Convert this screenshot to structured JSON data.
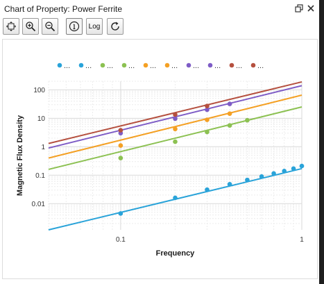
{
  "window": {
    "title": "Chart of Property: Power Ferrite",
    "restore_icon": "restore-window-icon",
    "close_icon": "close-icon"
  },
  "toolbar": {
    "buttons": [
      {
        "name": "fit-view-button",
        "icon": "fit-view-icon"
      },
      {
        "name": "zoom-in-button",
        "icon": "zoom-in-icon"
      },
      {
        "name": "zoom-out-button",
        "icon": "zoom-out-icon"
      },
      {
        "name": "info-button",
        "icon": "info-circle-icon"
      },
      {
        "name": "log-button",
        "label": "Log"
      },
      {
        "name": "refresh-button",
        "icon": "refresh-icon"
      }
    ]
  },
  "chart_data": {
    "type": "scatter",
    "xlabel": "Frequency",
    "ylabel": "Magnetic Flux Density",
    "xscale": "log",
    "yscale": "log",
    "xlim": [
      0.04,
      1.0
    ],
    "ylim": [
      0.0012,
      200
    ],
    "x_ticks": [
      {
        "value": 0.1,
        "label": "0.1"
      },
      {
        "value": 1,
        "label": "1"
      }
    ],
    "y_ticks": [
      {
        "value": 100,
        "label": "100"
      },
      {
        "value": 10,
        "label": "10"
      },
      {
        "value": 1,
        "label": "1"
      },
      {
        "value": 0.1,
        "label": "0.1"
      },
      {
        "value": 0.01,
        "label": "0.01"
      }
    ],
    "grid": true,
    "legend": {
      "position": "top",
      "entries": [
        {
          "label": "...",
          "color": "#29a3d9"
        },
        {
          "label": "...",
          "color": "#29a3d9"
        },
        {
          "label": "...",
          "color": "#8cc152"
        },
        {
          "label": "...",
          "color": "#8cc152"
        },
        {
          "label": "...",
          "color": "#f4a024"
        },
        {
          "label": "...",
          "color": "#f4a024"
        },
        {
          "label": "...",
          "color": "#7e5cc6"
        },
        {
          "label": "...",
          "color": "#7e5cc6"
        },
        {
          "label": "...",
          "color": "#b5503f"
        },
        {
          "label": "...",
          "color": "#b5503f"
        }
      ]
    },
    "series": [
      {
        "color": "#29a3d9",
        "points": [
          [
            0.1,
            0.0045
          ],
          [
            0.2,
            0.016
          ],
          [
            0.3,
            0.031
          ],
          [
            0.4,
            0.048
          ],
          [
            0.5,
            0.068
          ],
          [
            0.6,
            0.09
          ],
          [
            0.7,
            0.115
          ],
          [
            0.8,
            0.14
          ],
          [
            0.9,
            0.17
          ],
          [
            1.0,
            0.21
          ]
        ],
        "fit": [
          [
            0.04,
            0.0012
          ],
          [
            1.0,
            0.17
          ]
        ]
      },
      {
        "color": "#8cc152",
        "points": [
          [
            0.1,
            0.4
          ],
          [
            0.2,
            1.5
          ],
          [
            0.3,
            3.3
          ],
          [
            0.4,
            5.6
          ],
          [
            0.5,
            8.5
          ]
        ],
        "fit": [
          [
            0.04,
            0.16
          ],
          [
            1.0,
            25
          ]
        ]
      },
      {
        "color": "#f4a024",
        "points": [
          [
            0.1,
            1.1
          ],
          [
            0.2,
            4.2
          ],
          [
            0.3,
            8.8
          ],
          [
            0.4,
            14.5
          ]
        ],
        "fit": [
          [
            0.04,
            0.4
          ],
          [
            1.0,
            65
          ]
        ]
      },
      {
        "color": "#7e5cc6",
        "points": [
          [
            0.1,
            3.0
          ],
          [
            0.2,
            9.7
          ],
          [
            0.3,
            20
          ],
          [
            0.4,
            32
          ]
        ],
        "fit": [
          [
            0.04,
            0.9
          ],
          [
            1.0,
            140
          ]
        ]
      },
      {
        "color": "#b5503f",
        "points": [
          [
            0.1,
            3.8
          ],
          [
            0.2,
            13.5
          ],
          [
            0.3,
            27
          ]
        ],
        "fit": [
          [
            0.04,
            1.3
          ],
          [
            1.0,
            190
          ]
        ]
      }
    ]
  }
}
